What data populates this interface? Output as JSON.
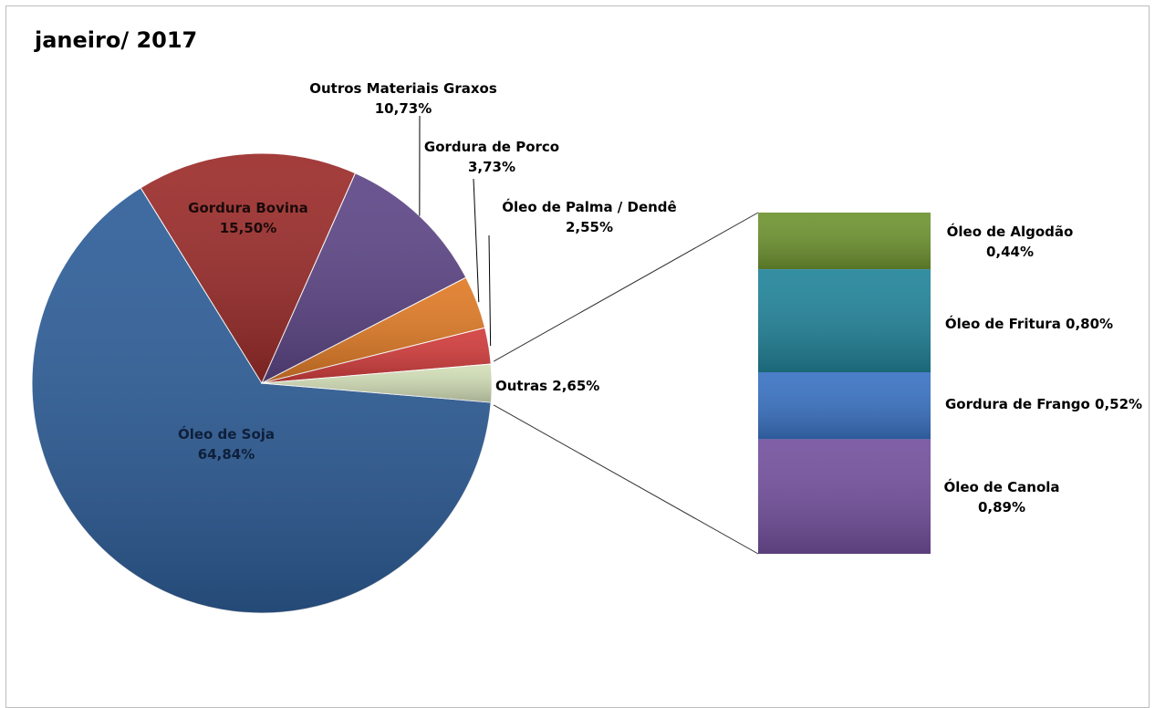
{
  "chart_data": {
    "type": "bar-of-pie",
    "title": "janeiro/ 2017",
    "pie": [
      {
        "name": "Óleo de Soja",
        "value": 64.84,
        "label_pct": "64,84%",
        "color": "#2e5e99"
      },
      {
        "name": "Gordura Bovina",
        "value": 15.5,
        "label_pct": "15,50%",
        "color": "#9b2c2a"
      },
      {
        "name": "Outros Materiais Graxos",
        "value": 10.73,
        "label_pct": "10,73%",
        "color": "#5e4687"
      },
      {
        "name": "Gordura de Porco",
        "value": 3.73,
        "label_pct": "3,73%",
        "color": "#e07b26"
      },
      {
        "name": "Óleo de Palma / Dendê",
        "value": 2.55,
        "label_pct": "2,55%",
        "color": "#d23c3c"
      },
      {
        "name": "Outras",
        "value": 2.65,
        "label_pct": "2,65%",
        "color": "#d3dfb8"
      }
    ],
    "bar": [
      {
        "name": "Óleo de Algodão",
        "value": 0.44,
        "label_pct": "0,44%",
        "color": "#6f9431"
      },
      {
        "name": "Óleo de Fritura",
        "value": 0.8,
        "label_pct": "0,80%",
        "color": "#22849a"
      },
      {
        "name": "Gordura de Frango",
        "value": 0.52,
        "label_pct": "0,52%",
        "color": "#3a73c4"
      },
      {
        "name": "Óleo de Canola",
        "value": 0.89,
        "label_pct": "0,89%",
        "color": "#74519e"
      }
    ],
    "legend": "none"
  }
}
